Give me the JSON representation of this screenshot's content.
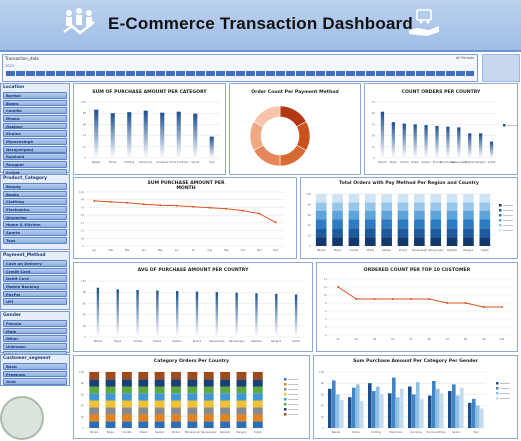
{
  "header": {
    "title": "E-Commerce Transaction Dashboard"
  },
  "timeline": {
    "heading": "Transaction_date",
    "selection": "All Periods",
    "year": "2023"
  },
  "slicers": {
    "location": {
      "heading": "Location",
      "items": [
        "Barisal",
        "Bogra",
        "Comilla",
        "Dhaka",
        "Gazipur",
        "Khulna",
        "Mymensingh",
        "Narayanganj",
        "Rajshahi",
        "Rangpur",
        "Sylhet"
      ]
    },
    "product_category": {
      "heading": "Product_Category",
      "items": [
        "Beauty",
        "Books",
        "Clothing",
        "Electronics",
        "Groceries",
        "Home & Kitchen",
        "Sports",
        "Toys"
      ]
    },
    "payment_method": {
      "heading": "Payment_Method",
      "items": [
        "Cash on Delivery",
        "Credit Card",
        "Debit Card",
        "Mobile Banking",
        "PayPal",
        "UPI"
      ]
    },
    "gender": {
      "heading": "Gender",
      "items": [
        "Female",
        "Male",
        "Other",
        "Unknown",
        "Hidden"
      ]
    },
    "customer_segment": {
      "heading": "Customer_segment",
      "items": [
        "Basic",
        "Premium",
        "Gold"
      ]
    }
  },
  "charts": {
    "sum_purchase_category": {
      "title": "SUM OF PURCHASE AMOUNT PER CATEGORY",
      "chart_data": {
        "type": "bar",
        "title": "SUM OF PURCHASE AMOUNT PER CATEGORY",
        "categories": [
          "Beauty",
          "Books",
          "Clothing",
          "Electronics",
          "Groceries",
          "Home & Kitchen",
          "Sports",
          "Toys"
        ],
        "values": [
          95,
          88,
          90,
          93,
          89,
          91,
          87,
          42
        ],
        "ylim": [
          0,
          110
        ]
      }
    },
    "payment_method_donut": {
      "title": "Order Count Per Payment Method",
      "chart_data": {
        "type": "pie",
        "title": "Order Count Per Payment Method",
        "categories": [
          "Cash on Delivery",
          "Credit Card",
          "Debit Card",
          "Mobile Banking",
          "PayPal",
          "UPI"
        ],
        "values": [
          17,
          16,
          17,
          17,
          16,
          17
        ],
        "colors": [
          "#b13a14",
          "#c9521f",
          "#d86a33",
          "#e7865a",
          "#f0a784",
          "#f6c4ab"
        ]
      }
    },
    "count_orders_country": {
      "title": "COUNT ORDERS PER COUNTRY",
      "chart_data": {
        "type": "bar",
        "title": "COUNT ORDERS PER COUNTRY",
        "categories": [
          "Barisal",
          "Bogra",
          "Comilla",
          "Dhaka",
          "Gazipur",
          "Khulna",
          "Mymensingh",
          "Narayanganj",
          "Rajshahi",
          "Rangpur",
          "Sylhet"
        ],
        "values": [
          62,
          48,
          46,
          45,
          44,
          43,
          42,
          41,
          33,
          33,
          22
        ],
        "ylim": [
          0,
          75
        ]
      }
    },
    "sum_purchase_month": {
      "title": "SUM PURCHASE AMOUNT PER MONTH",
      "chart_data": {
        "type": "line",
        "title": "SUM PURCHASE AMOUNT PER MONTH",
        "categories": [
          "Jan",
          "Feb",
          "Mar",
          "Apr",
          "May",
          "Jun",
          "Jul",
          "Aug",
          "Sep",
          "Oct",
          "Nov",
          "Dec"
        ],
        "values": [
          92,
          90,
          88,
          85,
          83,
          82,
          80,
          78,
          76,
          72,
          66,
          48
        ],
        "ylim": [
          0,
          110
        ],
        "line_color": "#d9531e"
      }
    },
    "total_orders_pay_region": {
      "title": "Total Orders with Pay Method Per Region and Country",
      "chart_data": {
        "type": "bar",
        "title": "Total Orders with Pay Method Per Region and Country",
        "categories": [
          "Barisal",
          "Bogra",
          "Comilla",
          "Dhaka",
          "Gazipur",
          "Khulna",
          "Mymensingh",
          "Narayanganj",
          "Rajshahi",
          "Rangpur",
          "Sylhet"
        ],
        "series": [
          {
            "values": [
              17,
              17,
              17,
              17,
              17,
              17,
              17,
              17,
              17,
              17,
              17
            ],
            "color": "#12386e"
          },
          {
            "values": [
              17,
              17,
              17,
              17,
              17,
              17,
              17,
              17,
              17,
              17,
              17
            ],
            "color": "#1c5a9e"
          },
          {
            "values": [
              17,
              17,
              17,
              17,
              17,
              17,
              17,
              17,
              17,
              17,
              17
            ],
            "color": "#2d7cc2"
          },
          {
            "values": [
              17,
              17,
              17,
              17,
              17,
              17,
              17,
              17,
              17,
              17,
              17
            ],
            "color": "#5ea4da"
          },
          {
            "values": [
              16,
              16,
              16,
              16,
              16,
              16,
              16,
              16,
              16,
              16,
              16
            ],
            "color": "#96c6ea"
          },
          {
            "values": [
              16,
              16,
              16,
              16,
              16,
              16,
              16,
              16,
              16,
              16,
              16
            ],
            "color": "#cfe4f5"
          }
        ],
        "ylim": [
          0,
          100
        ]
      }
    },
    "avg_purchase_country": {
      "title": "AVG OF PURCHASE AMOUNT PER COUNTRY",
      "chart_data": {
        "type": "bar",
        "title": "AVG OF PURCHASE AMOUNT PER COUNTRY",
        "categories": [
          "Barisal",
          "Bogra",
          "Comilla",
          "Dhaka",
          "Gazipur",
          "Khulna",
          "Mymensingh",
          "Narayanganj",
          "Rajshahi",
          "Rangpur",
          "Sylhet"
        ],
        "values": [
          88,
          85,
          84,
          83,
          82,
          81,
          80,
          79,
          78,
          77,
          76
        ],
        "ylim": [
          0,
          100
        ]
      }
    },
    "orders_top_customers": {
      "title": "ORDERED COUNT PER TOP 10 CUSTOMER",
      "chart_data": {
        "type": "line",
        "title": "ORDERED COUNT PER TOP 10 CUSTOMER",
        "categories": [
          "C1",
          "C2",
          "C3",
          "C4",
          "C5",
          "C6",
          "C7",
          "C8",
          "C9",
          "C10"
        ],
        "values": [
          12,
          9,
          9,
          9,
          9,
          9,
          8,
          8,
          7,
          7
        ],
        "ylim": [
          0,
          14
        ],
        "line_color": "#d9531e"
      }
    },
    "category_orders_country": {
      "title": "Category Orders Per Country",
      "chart_data": {
        "type": "bar",
        "title": "Category Orders Per Country",
        "categories": [
          "Barisal",
          "Bogra",
          "Comilla",
          "Dhaka",
          "Gazipur",
          "Khulna",
          "Mymensingh",
          "Narayanganj",
          "Rajshahi",
          "Rangpur",
          "Sylhet"
        ],
        "series": [
          {
            "values": [
              12,
              12,
              12,
              12,
              12,
              12,
              12,
              12,
              12,
              12,
              12
            ],
            "color": "#2f6db5"
          },
          {
            "values": [
              12,
              12,
              12,
              12,
              12,
              12,
              12,
              12,
              12,
              12,
              12
            ],
            "color": "#e4821e"
          },
          {
            "values": [
              13,
              13,
              13,
              13,
              13,
              13,
              13,
              13,
              13,
              13,
              13
            ],
            "color": "#8a8a8a"
          },
          {
            "values": [
              12,
              12,
              12,
              12,
              12,
              12,
              12,
              12,
              12,
              12,
              12
            ],
            "color": "#f2c12e"
          },
          {
            "values": [
              13,
              13,
              13,
              13,
              13,
              13,
              13,
              13,
              13,
              13,
              13
            ],
            "color": "#3f97d6"
          },
          {
            "values": [
              12,
              12,
              12,
              12,
              12,
              12,
              12,
              12,
              12,
              12,
              12
            ],
            "color": "#5da83f"
          },
          {
            "values": [
              13,
              13,
              13,
              13,
              13,
              13,
              13,
              13,
              13,
              13,
              13
            ],
            "color": "#1e3f73"
          },
          {
            "values": [
              13,
              13,
              13,
              13,
              13,
              13,
              13,
              13,
              13,
              13,
              13
            ],
            "color": "#9e4a1a"
          }
        ],
        "ylim": [
          0,
          100
        ]
      }
    },
    "sum_purchase_category_gender": {
      "title": "Sum Purchase Amount Per Category Per Gender",
      "chart_data": {
        "type": "bar",
        "title": "Sum Purchase Amount Per Category Per Gender",
        "categories": [
          "Beauty",
          "Books",
          "Clothing",
          "Electronics",
          "Groceries",
          "Home & Kitchen",
          "Sports",
          "Toys"
        ],
        "series": [
          {
            "values": [
              70,
              55,
              80,
              62,
              74,
              58,
              66,
              45
            ],
            "color": "#1c4f8f"
          },
          {
            "values": [
              85,
              72,
              66,
              90,
              60,
              84,
              78,
              52
            ],
            "color": "#3f86c9"
          },
          {
            "values": [
              60,
              78,
              74,
              55,
              82,
              70,
              58,
              40
            ],
            "color": "#8fc0e6"
          },
          {
            "values": [
              50,
              48,
              60,
              70,
              52,
              62,
              72,
              35
            ],
            "color": "#c5dcf0"
          }
        ],
        "ylim": [
          0,
          100
        ]
      }
    }
  }
}
